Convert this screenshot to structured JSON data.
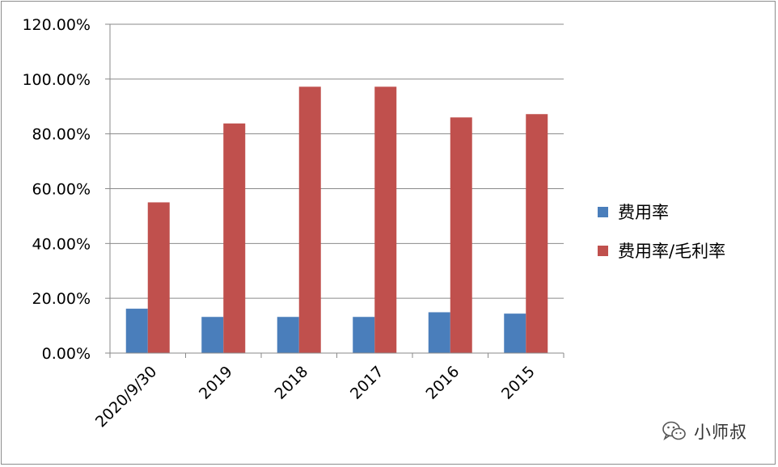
{
  "chart_data": {
    "type": "bar",
    "categories": [
      "2020/9/30",
      "2019",
      "2018",
      "2017",
      "2016",
      "2015"
    ],
    "series": [
      {
        "name": "费用率",
        "color": "#4a7ebb",
        "values": [
          16.2,
          13.2,
          13.2,
          13.2,
          14.9,
          14.4
        ]
      },
      {
        "name": "费用率/毛利率",
        "color": "#c0504d",
        "values": [
          55.0,
          83.8,
          97.2,
          97.2,
          86.0,
          87.2
        ]
      }
    ],
    "ylim": [
      0,
      120
    ],
    "yticks": [
      "0.00%",
      "20.00%",
      "40.00%",
      "60.00%",
      "80.00%",
      "100.00%",
      "120.00%"
    ],
    "grid": true,
    "legend_position": "right"
  },
  "watermark": {
    "text": "小师叔",
    "icon": "wechat-icon"
  }
}
